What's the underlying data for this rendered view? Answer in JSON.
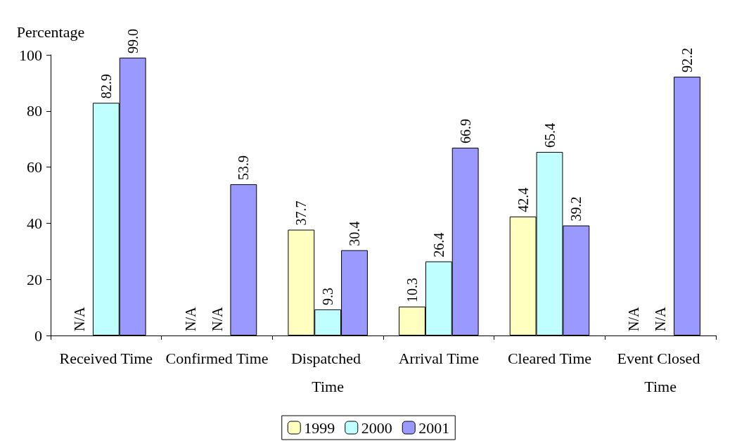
{
  "chart_data": {
    "type": "bar",
    "ylabel": "Percentage",
    "categories": [
      "Received Time",
      "Confirmed Time",
      "Dispatched Time",
      "Arrival Time",
      "Cleared Time",
      "Event Closed Time"
    ],
    "series": [
      {
        "name": "1999",
        "color": "#ffffc0",
        "values": [
          null,
          null,
          37.7,
          10.3,
          42.4,
          null
        ],
        "value_labels": [
          "N/A",
          "N/A",
          "37.7",
          "10.3",
          "42.4",
          "N/A"
        ]
      },
      {
        "name": "2000",
        "color": "#c0ffff",
        "values": [
          82.9,
          null,
          9.3,
          26.4,
          65.4,
          null
        ],
        "value_labels": [
          "82.9",
          "N/A",
          "9.3",
          "26.4",
          "65.4",
          "N/A"
        ]
      },
      {
        "name": "2001",
        "color": "#9999ff",
        "values": [
          99.0,
          53.9,
          30.4,
          66.9,
          39.2,
          92.2
        ],
        "value_labels": [
          "99.0",
          "53.9",
          "30.4",
          "66.9",
          "39.2",
          "92.2"
        ]
      }
    ],
    "ylim": [
      0,
      100
    ],
    "yticks": [
      0,
      20,
      40,
      60,
      80,
      100
    ],
    "grid": false,
    "legend": "bottom"
  }
}
